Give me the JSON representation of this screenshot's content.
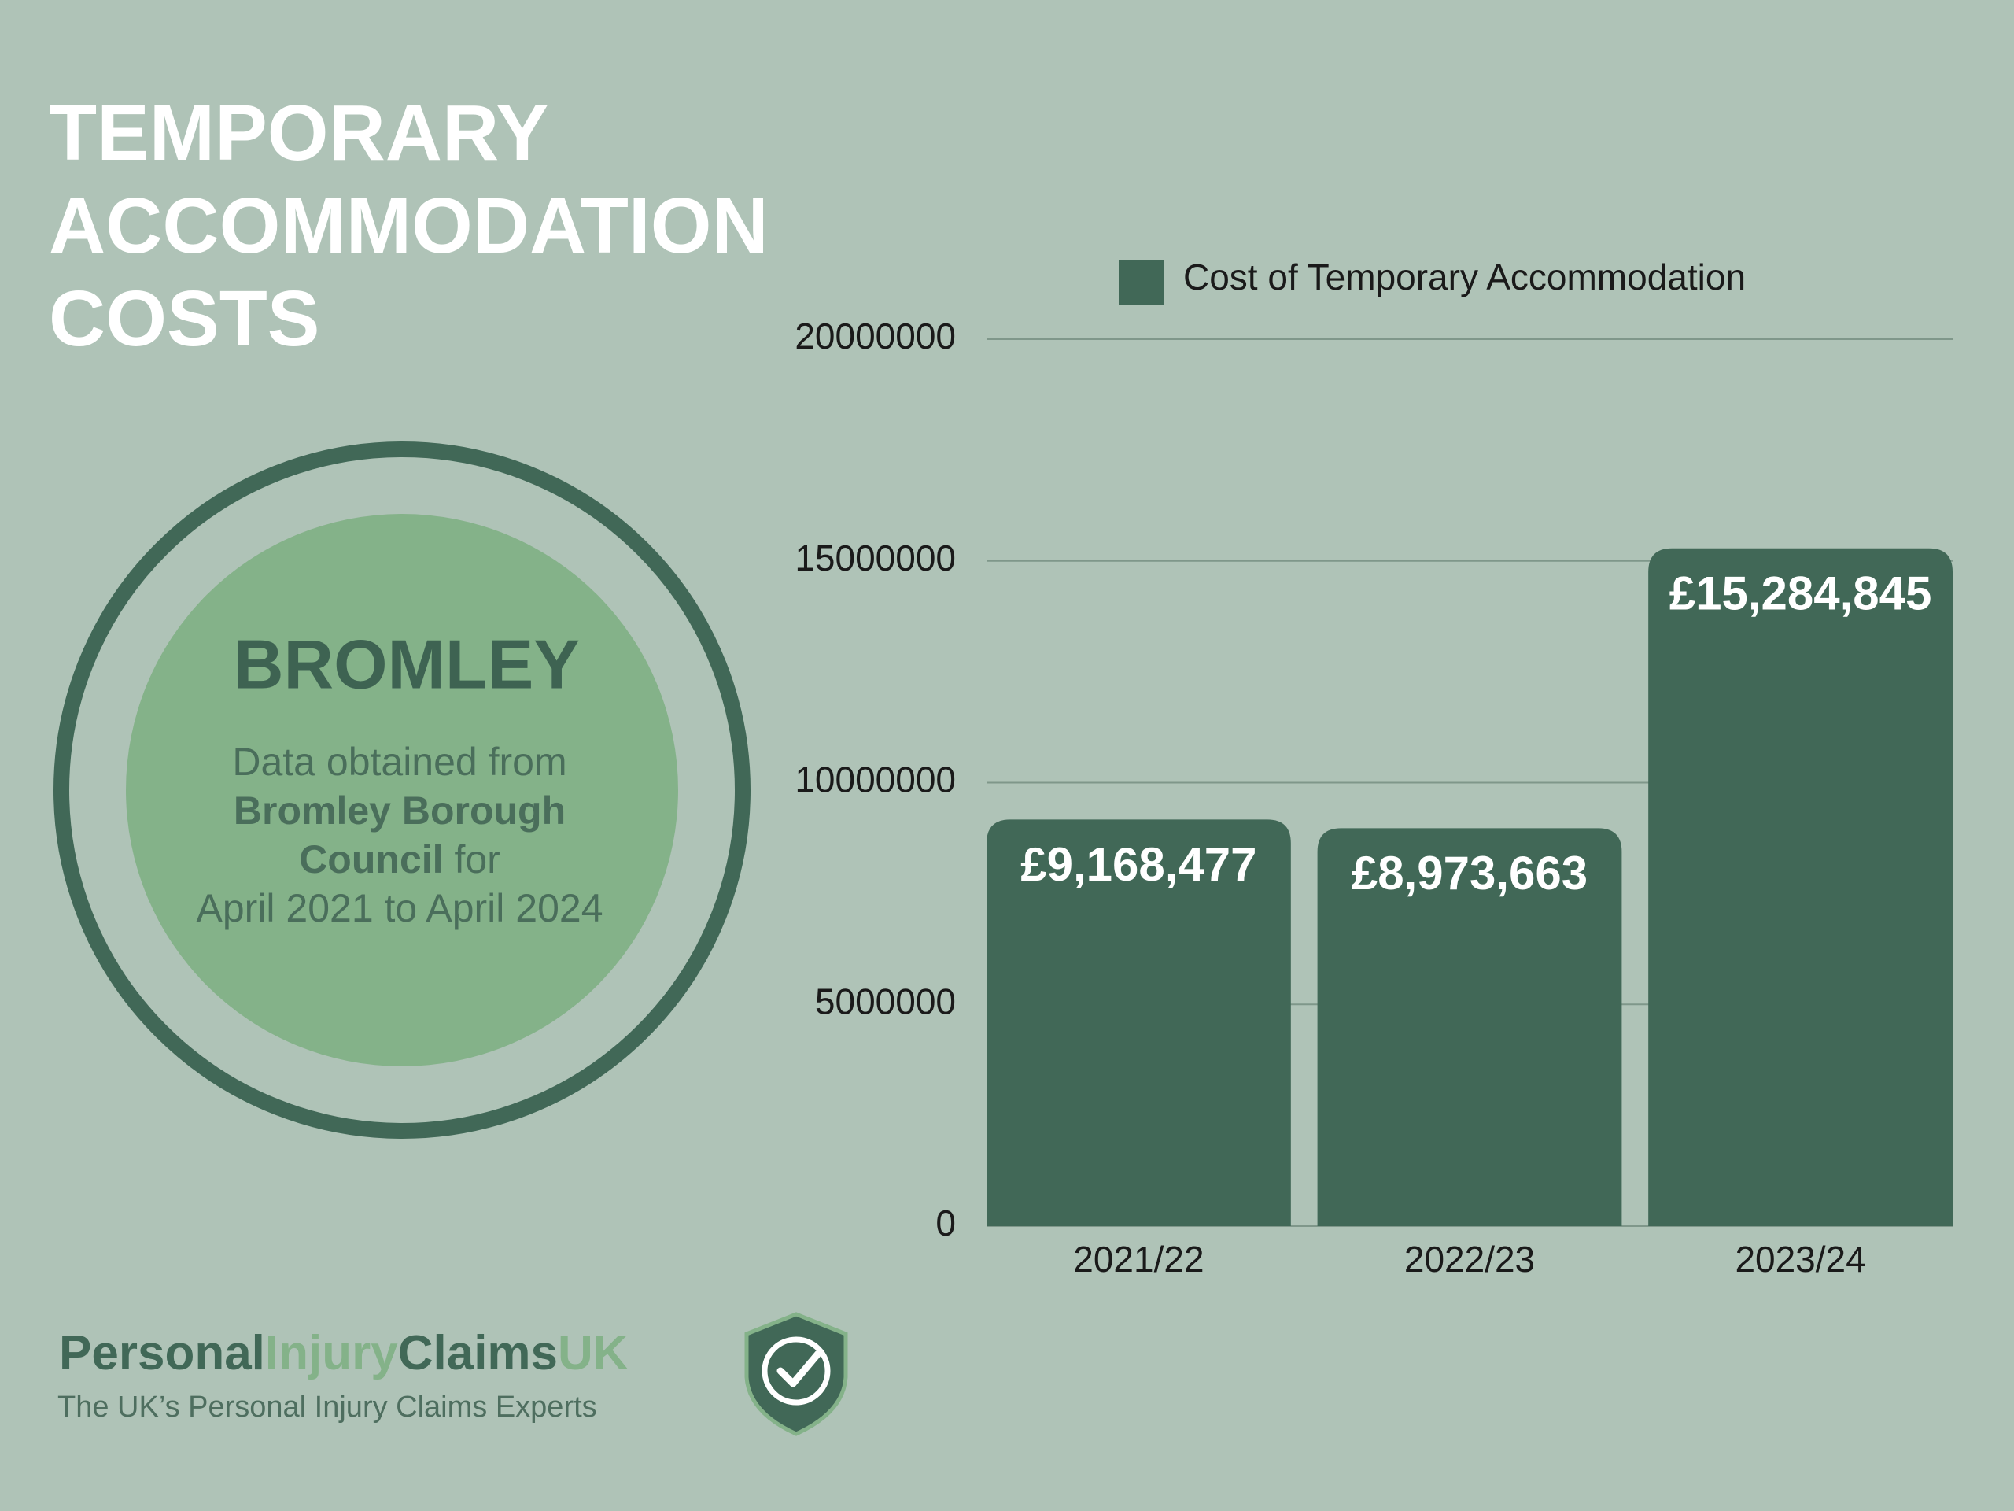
{
  "chart_data": {
    "type": "bar",
    "title": "TEMPORARY ACCOMMODATION COSTS",
    "categories": [
      "2021/22",
      "2022/23",
      "2023/24"
    ],
    "series": [
      {
        "name": "Cost of Temporary Accommodation",
        "color": "#416857",
        "values": [
          9168477,
          8973663,
          15284845
        ],
        "value_labels": [
          "£9,168,477",
          "£8,973,663",
          "£15,284,845"
        ]
      }
    ],
    "ylim": [
      0,
      20000000
    ],
    "yticks": [
      0,
      5000000,
      10000000,
      15000000,
      20000000
    ],
    "grid": true
  },
  "panel": {
    "heading": "BROMLEY",
    "description": [
      "Data obtained from",
      "Bromley Borough",
      "Council",
      "for",
      "April 2021 to April 2024"
    ]
  },
  "logo": {
    "parts": [
      "Personal",
      "Injury",
      "Claims",
      "UK"
    ],
    "tagline": "The UK’s Personal Injury Claims Experts"
  }
}
